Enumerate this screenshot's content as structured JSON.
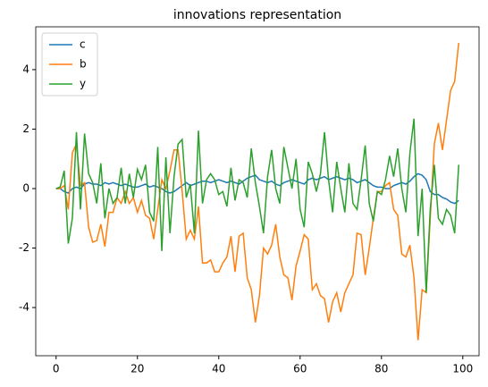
{
  "chart_data": {
    "type": "line",
    "title": "innovations representation",
    "x": [
      0,
      1,
      2,
      3,
      4,
      5,
      6,
      7,
      8,
      9,
      10,
      11,
      12,
      13,
      14,
      15,
      16,
      17,
      18,
      19,
      20,
      21,
      22,
      23,
      24,
      25,
      26,
      27,
      28,
      29,
      30,
      31,
      32,
      33,
      34,
      35,
      36,
      37,
      38,
      39,
      40,
      41,
      42,
      43,
      44,
      45,
      46,
      47,
      48,
      49,
      50,
      51,
      52,
      53,
      54,
      55,
      56,
      57,
      58,
      59,
      60,
      61,
      62,
      63,
      64,
      65,
      66,
      67,
      68,
      69,
      70,
      71,
      72,
      73,
      74,
      75,
      76,
      77,
      78,
      79,
      80,
      81,
      82,
      83,
      84,
      85,
      86,
      87,
      88,
      89,
      90,
      91,
      92,
      93,
      94,
      95,
      96,
      97,
      98,
      99
    ],
    "series": [
      {
        "name": "c",
        "color": "#1f77b4",
        "values": [
          0,
          0,
          -0.1,
          -0.15,
          0,
          0.05,
          0.0,
          0.15,
          0.2,
          0.15,
          0.15,
          0.1,
          0.2,
          0.15,
          0.2,
          0.15,
          0.1,
          0.15,
          0.1,
          0.05,
          0.05,
          0.1,
          0.15,
          0.05,
          0.1,
          0.05,
          0.0,
          -0.1,
          -0.15,
          -0.1,
          0.0,
          0.1,
          0.2,
          0.1,
          0.15,
          0.2,
          0.25,
          0.25,
          0.2,
          0.25,
          0.3,
          0.25,
          0.2,
          0.25,
          0.2,
          0.15,
          0.25,
          0.35,
          0.4,
          0.45,
          0.3,
          0.25,
          0.2,
          0.25,
          0.15,
          0.1,
          0.2,
          0.25,
          0.3,
          0.25,
          0.2,
          0.15,
          0.3,
          0.35,
          0.3,
          0.35,
          0.4,
          0.3,
          0.35,
          0.4,
          0.35,
          0.3,
          0.35,
          0.3,
          0.2,
          0.25,
          0.3,
          0.2,
          0.1,
          0.05,
          0.05,
          0.0,
          0.0,
          0.1,
          0.15,
          0.2,
          0.15,
          0.25,
          0.4,
          0.5,
          0.45,
          0.3,
          -0.1,
          -0.2,
          -0.2,
          -0.3,
          -0.35,
          -0.45,
          -0.5,
          -0.4
        ]
      },
      {
        "name": "b",
        "color": "#ff7f0e",
        "values": [
          0,
          0,
          0.1,
          -0.7,
          1.2,
          1.5,
          0.1,
          0.2,
          -1.3,
          -1.8,
          -1.75,
          -1.2,
          -1.95,
          -0.8,
          -0.8,
          -0.3,
          -0.5,
          -0.1,
          -0.5,
          -0.3,
          -0.8,
          -0.4,
          -0.9,
          -1.0,
          -1.7,
          -0.7,
          0.3,
          0.0,
          0.6,
          1.3,
          1.3,
          -0.1,
          -1.7,
          -1.4,
          -1.7,
          -0.6,
          -2.5,
          -2.5,
          -2.4,
          -2.8,
          -2.8,
          -2.5,
          -2.3,
          -1.6,
          -2.8,
          -1.6,
          -1.5,
          -3.0,
          -3.4,
          -4.5,
          -3.6,
          -2.0,
          -2.2,
          -1.9,
          -1.2,
          -2.3,
          -2.9,
          -3.0,
          -3.75,
          -2.6,
          -2.1,
          -1.55,
          -1.7,
          -3.4,
          -3.2,
          -3.6,
          -3.7,
          -4.5,
          -3.8,
          -3.5,
          -4.15,
          -3.5,
          -3.2,
          -2.9,
          -1.5,
          -1.55,
          -2.9,
          -2.0,
          -1.0,
          -0.1,
          -0.1,
          0.1,
          0.2,
          -0.7,
          -0.9,
          -2.2,
          -2.3,
          -1.9,
          -3.0,
          -5.1,
          -3.4,
          -3.5,
          -1.0,
          1.5,
          2.2,
          1.3,
          2.3,
          3.3,
          3.6,
          4.9
        ]
      },
      {
        "name": "y",
        "color": "#2ca02c",
        "values": [
          0,
          0.05,
          0.6,
          -1.85,
          -1.0,
          1.9,
          -0.7,
          1.85,
          0.5,
          0.2,
          -0.5,
          0.85,
          -1.0,
          0.0,
          -0.5,
          -0.3,
          0.7,
          -0.5,
          0.5,
          -0.3,
          0.65,
          0.3,
          0.8,
          -0.8,
          -1.1,
          1.4,
          -2.1,
          1.05,
          -1.5,
          0.4,
          1.5,
          1.65,
          -0.3,
          0.15,
          -1.5,
          1.95,
          -0.5,
          0.3,
          0.5,
          0.3,
          -0.2,
          -0.1,
          -0.6,
          0.7,
          -0.4,
          0.3,
          0.2,
          -0.3,
          1.35,
          0.2,
          -0.6,
          -1.5,
          0.4,
          1.3,
          0.0,
          -0.5,
          1.4,
          0.7,
          0.0,
          1.0,
          -0.7,
          -1.3,
          0.9,
          0.5,
          -0.1,
          0.5,
          1.9,
          0.3,
          -0.8,
          0.9,
          0.0,
          -0.8,
          0.85,
          -0.5,
          -0.7,
          0.3,
          1.45,
          -0.5,
          -1.1,
          -0.1,
          -0.2,
          0.3,
          1.1,
          0.4,
          1.35,
          0.0,
          -0.8,
          1.2,
          2.35,
          -1.6,
          0.0,
          -3.5,
          -0.7,
          0.8,
          -1.0,
          -1.2,
          -0.7,
          -0.9,
          -1.5,
          0.8
        ]
      }
    ],
    "xlim": [
      -5,
      104
    ],
    "xticks": [
      0,
      20,
      40,
      60,
      80,
      100
    ],
    "ylim": [
      -5.62,
      5.44
    ],
    "yticks": [
      -4,
      -2,
      0,
      2,
      4
    ],
    "legend": "upper left"
  }
}
